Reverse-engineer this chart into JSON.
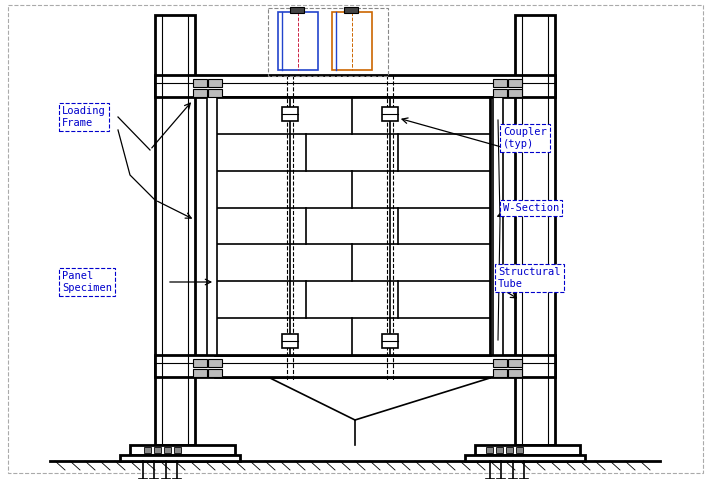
{
  "bg_color": "#ffffff",
  "lc": "#000000",
  "gray_fill": "#d8d8d8",
  "light_fill": "#f0f0f0",
  "labels": {
    "loading_frame": "Loading\nFrame",
    "panel_specimen": "Panel\nSpecimen",
    "coupler": "Coupler\n(typ)",
    "w_section": "W-Section",
    "structural_tube": "Structural\nTube"
  },
  "fig_width": 7.1,
  "fig_height": 4.79,
  "dpi": 100
}
